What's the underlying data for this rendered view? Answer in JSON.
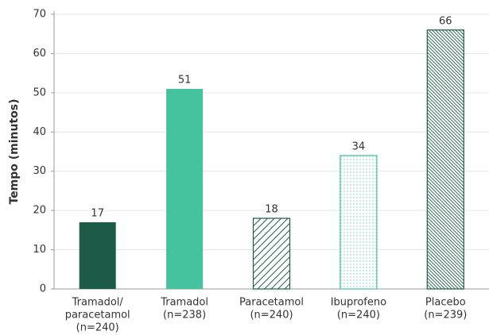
{
  "chart_data": {
    "type": "bar",
    "y_label": "Tempo (minutos)",
    "categories": [
      [
        "Tramadol/",
        "paracetamol",
        "(n=240)"
      ],
      [
        "Tramadol",
        "(n=238)"
      ],
      [
        "Paracetamol",
        "(n=240)"
      ],
      [
        "Ibuprofeno",
        "(n=240)"
      ],
      [
        "Placebo",
        "(n=239)"
      ]
    ],
    "values": [
      17,
      51,
      18,
      34,
      66
    ],
    "colors": [
      "#1e5a48",
      "#45c29e",
      "#1e5a48",
      "#45c29e",
      "#1e5a48"
    ],
    "patterns": [
      "solid",
      "solid",
      "hatch",
      "dots",
      "dense-hatch"
    ],
    "ylim": [
      0,
      70
    ],
    "yticks": [
      0,
      10,
      20,
      30,
      40,
      50,
      60,
      70
    ],
    "grid": true
  }
}
